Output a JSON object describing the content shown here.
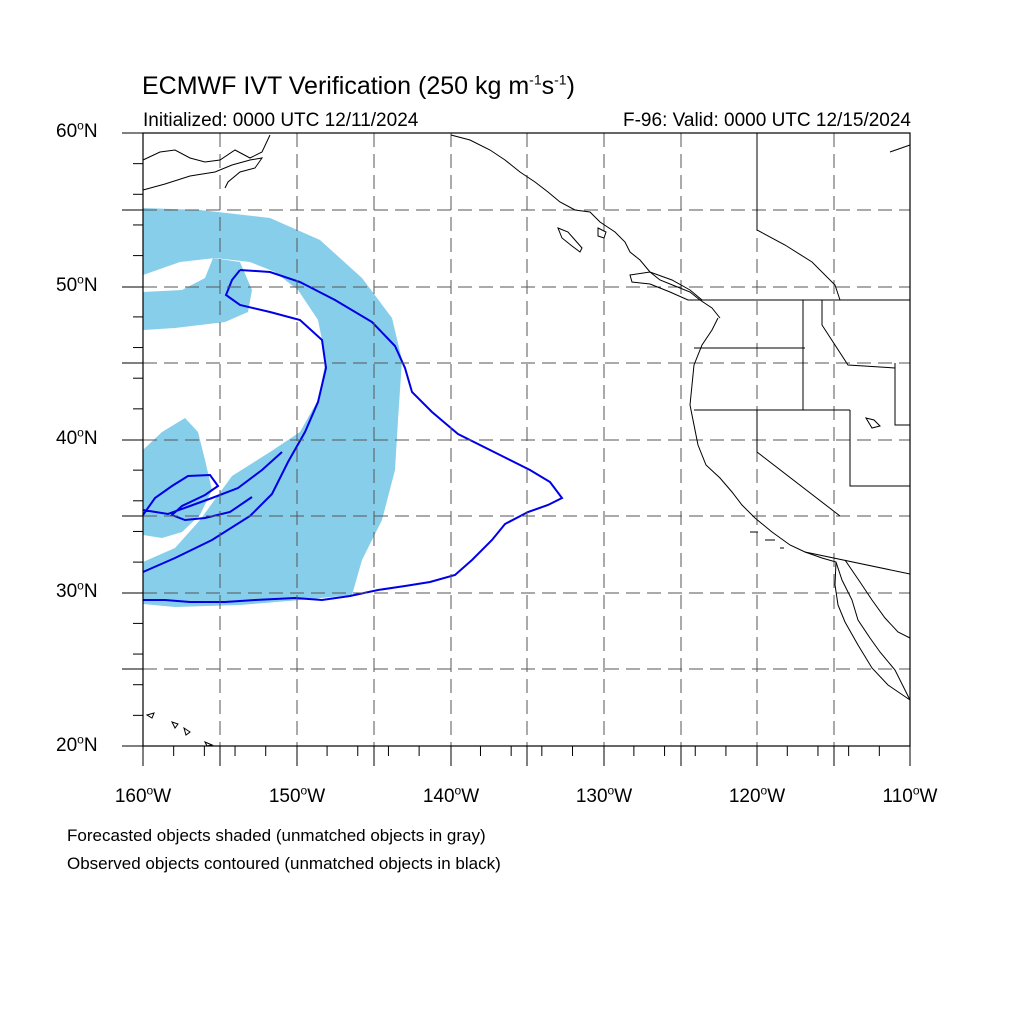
{
  "title": {
    "prefix": "ECMWF IVT Verification (250 kg m",
    "exp1": "-1",
    "mid": "s",
    "exp2": "-1",
    "suffix": ")"
  },
  "subtitle_left": "Initialized: 0000 UTC 12/11/2024",
  "subtitle_right": "F-96: Valid: 0000 UTC 12/15/2024",
  "lat_labels": [
    {
      "num": "60",
      "sym": "o",
      "hem": "N"
    },
    {
      "num": "50",
      "sym": "o",
      "hem": "N"
    },
    {
      "num": "40",
      "sym": "o",
      "hem": "N"
    },
    {
      "num": "30",
      "sym": "o",
      "hem": "N"
    },
    {
      "num": "20",
      "sym": "o",
      "hem": "N"
    }
  ],
  "lon_labels": [
    {
      "num": "160",
      "sym": "o",
      "hem": "W"
    },
    {
      "num": "150",
      "sym": "o",
      "hem": "W"
    },
    {
      "num": "140",
      "sym": "o",
      "hem": "W"
    },
    {
      "num": "130",
      "sym": "o",
      "hem": "W"
    },
    {
      "num": "120",
      "sym": "o",
      "hem": "W"
    },
    {
      "num": "110",
      "sym": "o",
      "hem": "W"
    }
  ],
  "caption_1": "Forecasted objects shaded (unmatched objects in gray)",
  "caption_2": "Observed objects contoured (unmatched objects in black)",
  "colors": {
    "forecast_fill": "#87ceeb",
    "observed_contour": "#0000e6",
    "coastline": "#000000",
    "grid": "#555555"
  },
  "map_extent": {
    "lon_min": -160,
    "lon_max": -110,
    "lat_min": 20,
    "lat_max": 60
  }
}
